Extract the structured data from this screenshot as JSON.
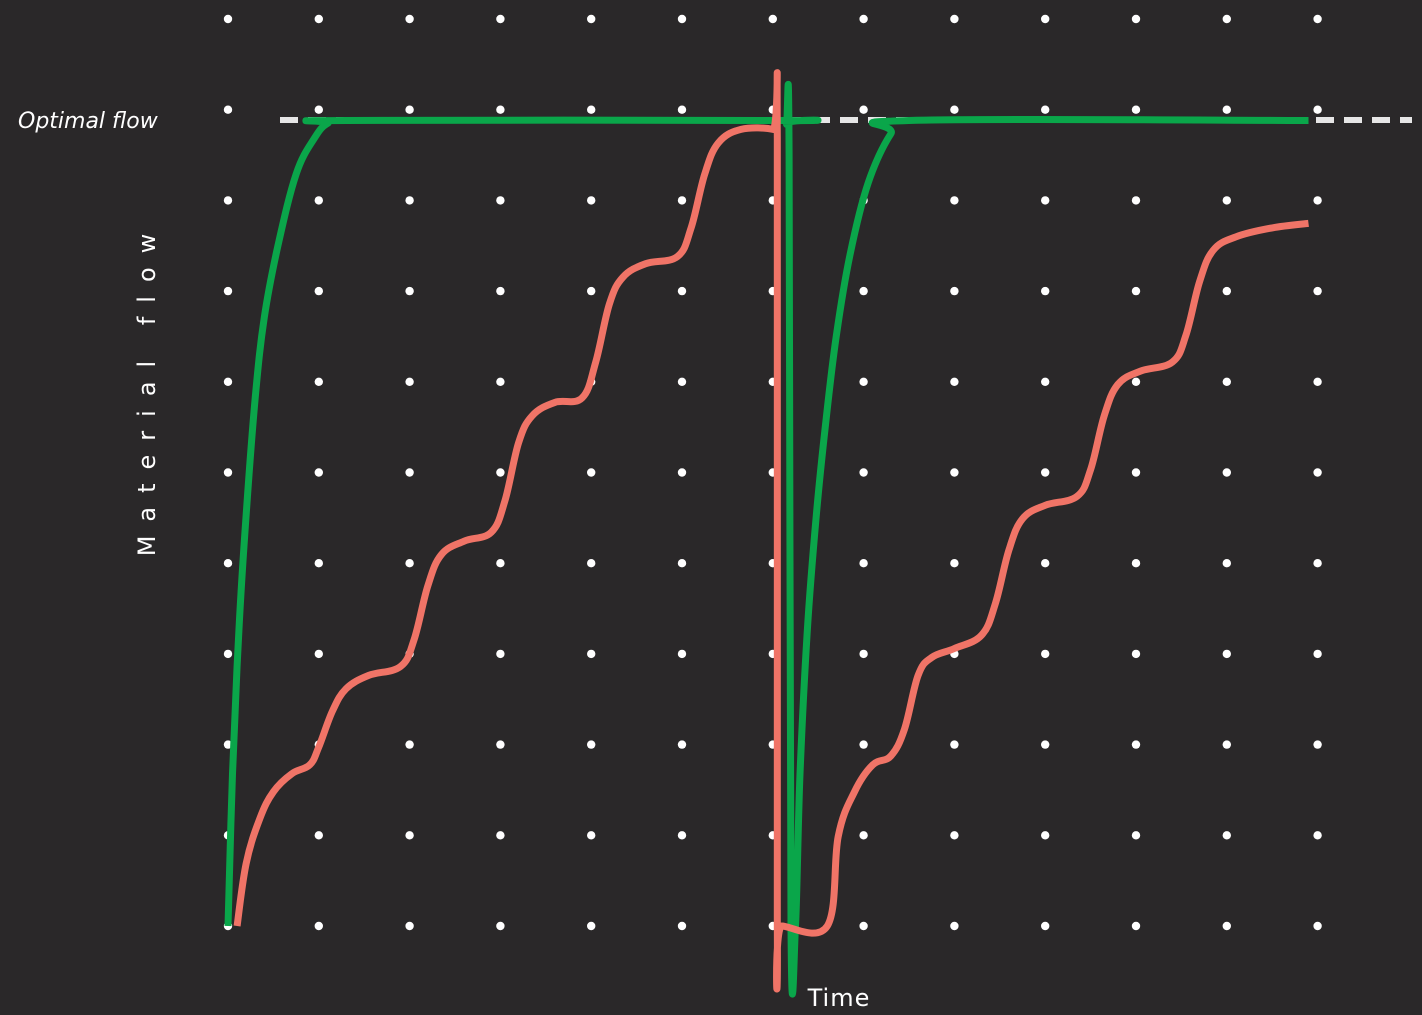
{
  "chart_data": {
    "type": "line",
    "xlabel": "Time",
    "ylabel": "Material flow",
    "grid": "dots",
    "xlim": [
      0,
      12.5
    ],
    "ylim": [
      0,
      9
    ],
    "reference_line": {
      "label": "Optimal flow",
      "y": 9,
      "style": "dashed",
      "color": "#e6e6e6"
    },
    "colors": {
      "background": "#2a2829",
      "dot": "#ffffff",
      "green": "#0aa64a",
      "salmon": "#f07467"
    },
    "series": [
      {
        "color": "#0aa64a",
        "points": [
          [
            0.0,
            0
          ],
          [
            0.05,
            1.7
          ],
          [
            0.12,
            3.3
          ],
          [
            0.2,
            4.6
          ],
          [
            0.3,
            5.9
          ],
          [
            0.4,
            6.8
          ],
          [
            0.55,
            7.6
          ],
          [
            0.75,
            8.4
          ],
          [
            0.95,
            8.8
          ],
          [
            1.1,
            8.97
          ],
          [
            1.3,
            9
          ],
          [
            6.1,
            9
          ],
          [
            6.15,
            8.96
          ],
          [
            6.18,
            8.6
          ],
          [
            6.2,
            0
          ],
          [
            6.25,
            0
          ],
          [
            6.3,
            1.7
          ],
          [
            6.38,
            3.3
          ],
          [
            6.48,
            4.6
          ],
          [
            6.58,
            5.6
          ],
          [
            6.7,
            6.6
          ],
          [
            6.85,
            7.5
          ],
          [
            7.05,
            8.3
          ],
          [
            7.3,
            8.85
          ],
          [
            7.5,
            9
          ],
          [
            11.9,
            9
          ]
        ]
      },
      {
        "color": "#f07467",
        "points": [
          [
            0.1,
            0
          ],
          [
            0.2,
            0.7
          ],
          [
            0.35,
            1.2
          ],
          [
            0.5,
            1.5
          ],
          [
            0.7,
            1.7
          ],
          [
            0.9,
            1.8
          ],
          [
            1.0,
            2.0
          ],
          [
            1.15,
            2.4
          ],
          [
            1.3,
            2.65
          ],
          [
            1.55,
            2.8
          ],
          [
            1.9,
            2.9
          ],
          [
            2.05,
            3.2
          ],
          [
            2.2,
            3.8
          ],
          [
            2.35,
            4.15
          ],
          [
            2.6,
            4.3
          ],
          [
            2.9,
            4.4
          ],
          [
            3.05,
            4.75
          ],
          [
            3.2,
            5.4
          ],
          [
            3.35,
            5.7
          ],
          [
            3.6,
            5.85
          ],
          [
            3.9,
            5.9
          ],
          [
            4.05,
            6.3
          ],
          [
            4.2,
            6.95
          ],
          [
            4.35,
            7.25
          ],
          [
            4.6,
            7.4
          ],
          [
            4.95,
            7.48
          ],
          [
            5.1,
            7.8
          ],
          [
            5.25,
            8.4
          ],
          [
            5.4,
            8.75
          ],
          [
            5.65,
            8.9
          ],
          [
            6.0,
            8.9
          ],
          [
            6.05,
            8.8
          ],
          [
            6.05,
            0
          ],
          [
            6.1,
            0
          ],
          [
            6.6,
            0
          ],
          [
            6.72,
            1.0
          ],
          [
            6.9,
            1.5
          ],
          [
            7.1,
            1.8
          ],
          [
            7.3,
            1.9
          ],
          [
            7.45,
            2.2
          ],
          [
            7.6,
            2.8
          ],
          [
            7.75,
            3.0
          ],
          [
            8.0,
            3.1
          ],
          [
            8.3,
            3.25
          ],
          [
            8.45,
            3.6
          ],
          [
            8.6,
            4.2
          ],
          [
            8.75,
            4.55
          ],
          [
            9.0,
            4.7
          ],
          [
            9.35,
            4.8
          ],
          [
            9.5,
            5.1
          ],
          [
            9.65,
            5.7
          ],
          [
            9.8,
            6.05
          ],
          [
            10.05,
            6.2
          ],
          [
            10.4,
            6.3
          ],
          [
            10.55,
            6.6
          ],
          [
            10.7,
            7.2
          ],
          [
            10.85,
            7.55
          ],
          [
            11.1,
            7.7
          ],
          [
            11.5,
            7.8
          ],
          [
            11.9,
            7.85
          ]
        ]
      }
    ]
  }
}
